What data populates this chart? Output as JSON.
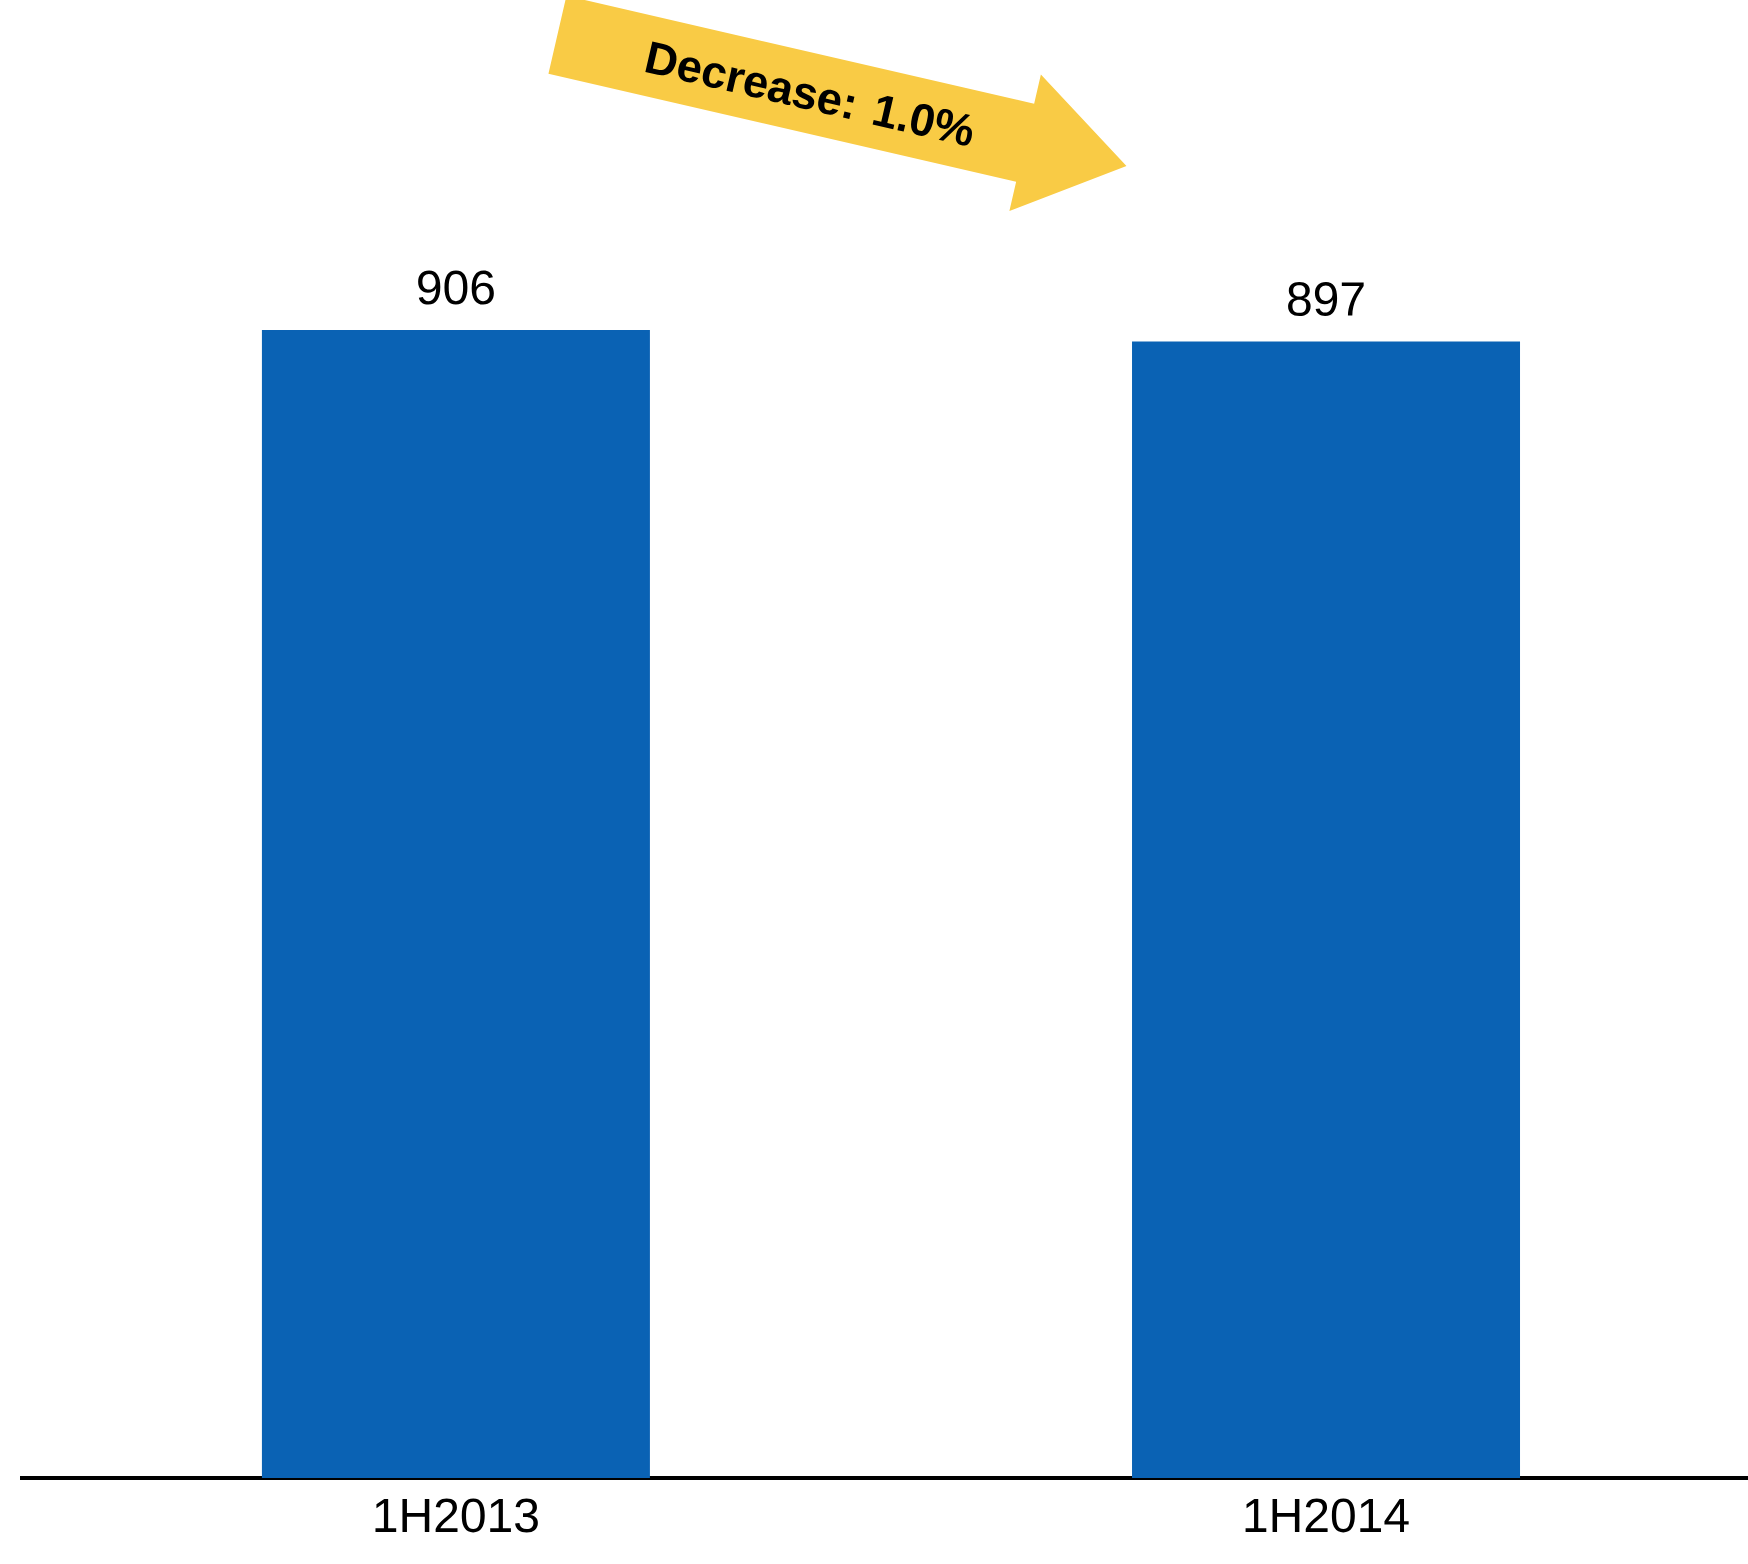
{
  "chart_data": {
    "type": "bar",
    "categories": [
      "1H2013",
      "1H2014"
    ],
    "values": [
      906,
      897
    ],
    "color": "#0a62b4",
    "data_labels": true,
    "annotations": [
      "Decrease: 1.0%"
    ]
  }
}
